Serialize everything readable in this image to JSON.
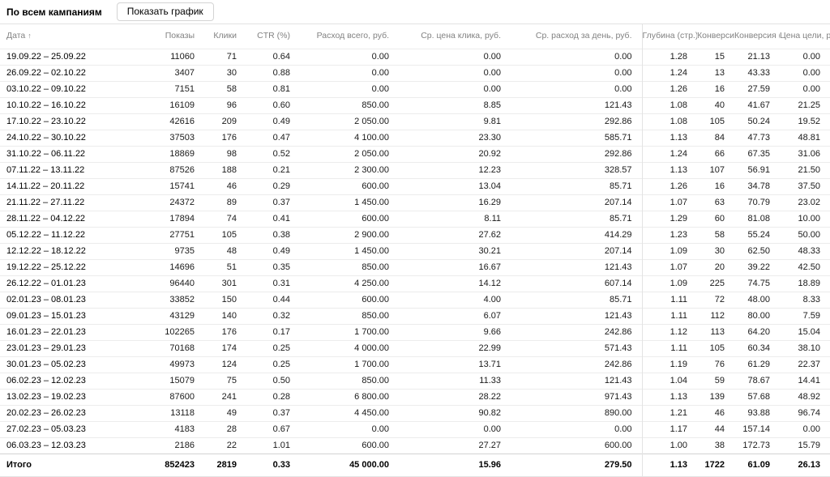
{
  "toolbar": {
    "title": "По всем кампаниям",
    "show_chart_label": "Показать график"
  },
  "table": {
    "sort_icon": "↑",
    "columns": [
      {
        "key": "date",
        "label": "Дата",
        "sorted": true
      },
      {
        "key": "impressions",
        "label": "Показы"
      },
      {
        "key": "clicks",
        "label": "Клики"
      },
      {
        "key": "ctr",
        "label": "CTR (%)"
      },
      {
        "key": "spend-total",
        "label": "Расход всего, руб."
      },
      {
        "key": "avg-cpc",
        "label": "Ср. цена клика, руб."
      },
      {
        "key": "avg-daily-spend",
        "label": "Ср. расход за день, руб."
      },
      {
        "key": "depth",
        "label": "Глубина (стр.)"
      },
      {
        "key": "conversions",
        "label": "Конверсии"
      },
      {
        "key": "conversion-rate",
        "label": "Конверсия (%)"
      },
      {
        "key": "goal-cost",
        "label": "Цена цели, руб."
      }
    ],
    "rows": [
      [
        "19.09.22 – 25.09.22",
        "11060",
        "71",
        "0.64",
        "0.00",
        "0.00",
        "0.00",
        "1.28",
        "15",
        "21.13",
        "0.00"
      ],
      [
        "26.09.22 – 02.10.22",
        "3407",
        "30",
        "0.88",
        "0.00",
        "0.00",
        "0.00",
        "1.24",
        "13",
        "43.33",
        "0.00"
      ],
      [
        "03.10.22 – 09.10.22",
        "7151",
        "58",
        "0.81",
        "0.00",
        "0.00",
        "0.00",
        "1.26",
        "16",
        "27.59",
        "0.00"
      ],
      [
        "10.10.22 – 16.10.22",
        "16109",
        "96",
        "0.60",
        "850.00",
        "8.85",
        "121.43",
        "1.08",
        "40",
        "41.67",
        "21.25"
      ],
      [
        "17.10.22 – 23.10.22",
        "42616",
        "209",
        "0.49",
        "2 050.00",
        "9.81",
        "292.86",
        "1.08",
        "105",
        "50.24",
        "19.52"
      ],
      [
        "24.10.22 – 30.10.22",
        "37503",
        "176",
        "0.47",
        "4 100.00",
        "23.30",
        "585.71",
        "1.13",
        "84",
        "47.73",
        "48.81"
      ],
      [
        "31.10.22 – 06.11.22",
        "18869",
        "98",
        "0.52",
        "2 050.00",
        "20.92",
        "292.86",
        "1.24",
        "66",
        "67.35",
        "31.06"
      ],
      [
        "07.11.22 – 13.11.22",
        "87526",
        "188",
        "0.21",
        "2 300.00",
        "12.23",
        "328.57",
        "1.13",
        "107",
        "56.91",
        "21.50"
      ],
      [
        "14.11.22 – 20.11.22",
        "15741",
        "46",
        "0.29",
        "600.00",
        "13.04",
        "85.71",
        "1.26",
        "16",
        "34.78",
        "37.50"
      ],
      [
        "21.11.22 – 27.11.22",
        "24372",
        "89",
        "0.37",
        "1 450.00",
        "16.29",
        "207.14",
        "1.07",
        "63",
        "70.79",
        "23.02"
      ],
      [
        "28.11.22 – 04.12.22",
        "17894",
        "74",
        "0.41",
        "600.00",
        "8.11",
        "85.71",
        "1.29",
        "60",
        "81.08",
        "10.00"
      ],
      [
        "05.12.22 – 11.12.22",
        "27751",
        "105",
        "0.38",
        "2 900.00",
        "27.62",
        "414.29",
        "1.23",
        "58",
        "55.24",
        "50.00"
      ],
      [
        "12.12.22 – 18.12.22",
        "9735",
        "48",
        "0.49",
        "1 450.00",
        "30.21",
        "207.14",
        "1.09",
        "30",
        "62.50",
        "48.33"
      ],
      [
        "19.12.22 – 25.12.22",
        "14696",
        "51",
        "0.35",
        "850.00",
        "16.67",
        "121.43",
        "1.07",
        "20",
        "39.22",
        "42.50"
      ],
      [
        "26.12.22 – 01.01.23",
        "96440",
        "301",
        "0.31",
        "4 250.00",
        "14.12",
        "607.14",
        "1.09",
        "225",
        "74.75",
        "18.89"
      ],
      [
        "02.01.23 – 08.01.23",
        "33852",
        "150",
        "0.44",
        "600.00",
        "4.00",
        "85.71",
        "1.11",
        "72",
        "48.00",
        "8.33"
      ],
      [
        "09.01.23 – 15.01.23",
        "43129",
        "140",
        "0.32",
        "850.00",
        "6.07",
        "121.43",
        "1.11",
        "112",
        "80.00",
        "7.59"
      ],
      [
        "16.01.23 – 22.01.23",
        "102265",
        "176",
        "0.17",
        "1 700.00",
        "9.66",
        "242.86",
        "1.12",
        "113",
        "64.20",
        "15.04"
      ],
      [
        "23.01.23 – 29.01.23",
        "70168",
        "174",
        "0.25",
        "4 000.00",
        "22.99",
        "571.43",
        "1.11",
        "105",
        "60.34",
        "38.10"
      ],
      [
        "30.01.23 – 05.02.23",
        "49973",
        "124",
        "0.25",
        "1 700.00",
        "13.71",
        "242.86",
        "1.19",
        "76",
        "61.29",
        "22.37"
      ],
      [
        "06.02.23 – 12.02.23",
        "15079",
        "75",
        "0.50",
        "850.00",
        "11.33",
        "121.43",
        "1.04",
        "59",
        "78.67",
        "14.41"
      ],
      [
        "13.02.23 – 19.02.23",
        "87600",
        "241",
        "0.28",
        "6 800.00",
        "28.22",
        "971.43",
        "1.13",
        "139",
        "57.68",
        "48.92"
      ],
      [
        "20.02.23 – 26.02.23",
        "13118",
        "49",
        "0.37",
        "4 450.00",
        "90.82",
        "890.00",
        "1.21",
        "46",
        "93.88",
        "96.74"
      ],
      [
        "27.02.23 – 05.03.23",
        "4183",
        "28",
        "0.67",
        "0.00",
        "0.00",
        "0.00",
        "1.17",
        "44",
        "157.14",
        "0.00"
      ],
      [
        "06.03.23 – 12.03.23",
        "2186",
        "22",
        "1.01",
        "600.00",
        "27.27",
        "600.00",
        "1.00",
        "38",
        "172.73",
        "15.79"
      ]
    ],
    "totals": [
      "Итого",
      "852423",
      "2819",
      "0.33",
      "45 000.00",
      "15.96",
      "279.50",
      "1.13",
      "1722",
      "61.09",
      "26.13"
    ]
  },
  "colors": {
    "header_text": "#828282",
    "row_border": "#ececec",
    "totals_border": "#d2d2d2",
    "button_border": "#d4d4d4"
  }
}
